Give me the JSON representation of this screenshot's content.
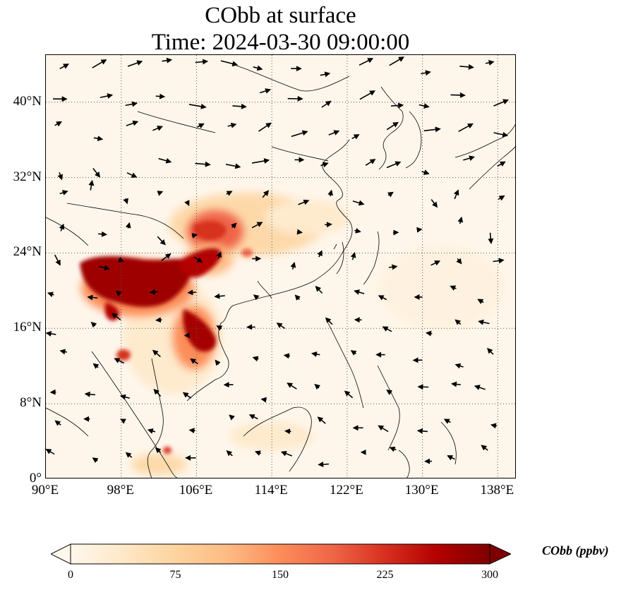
{
  "title": {
    "line1": "CObb at surface",
    "line2": "Time: 2024-03-30 09:00:00"
  },
  "map": {
    "lon_range": [
      90,
      140
    ],
    "lat_range": [
      0,
      45
    ],
    "x_ticks": [
      "90°E",
      "98°E",
      "106°E",
      "114°E",
      "122°E",
      "130°E",
      "138°E"
    ],
    "x_tick_values": [
      90,
      98,
      106,
      114,
      122,
      130,
      138
    ],
    "y_ticks": [
      "0°",
      "8°N",
      "16°N",
      "24°N",
      "32°N",
      "40°N"
    ],
    "y_tick_values": [
      0,
      8,
      16,
      24,
      32,
      40
    ],
    "gridlines": "dotted",
    "background_color": "#fff6eb",
    "plume_colors": [
      "#7f0000",
      "#b30000",
      "#d7301f",
      "#ef6548",
      "#fc8d59",
      "#fdbb84",
      "#fdd49e"
    ]
  },
  "colorbar": {
    "label": "CObb (ppbv)",
    "ticks": [
      "0",
      "75",
      "150",
      "225",
      "300"
    ],
    "tick_values": [
      0,
      75,
      150,
      225,
      300
    ],
    "range": [
      0,
      300
    ],
    "extend": "both",
    "colormap": "OrRd",
    "colors": [
      "#fff7ec",
      "#fee8c8",
      "#fdd49e",
      "#fdbb84",
      "#fc8d59",
      "#ef6548",
      "#d7301f",
      "#b30000",
      "#7f0000"
    ]
  }
}
